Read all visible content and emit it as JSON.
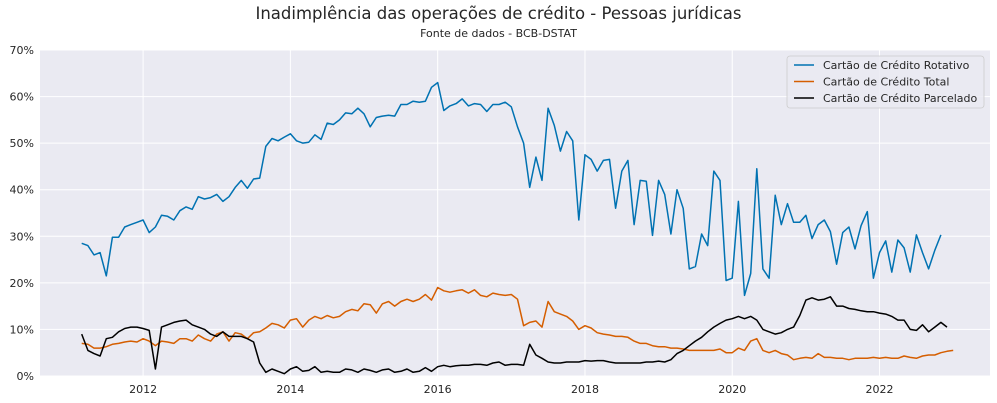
{
  "chart_data": {
    "type": "line",
    "title": "Inadimplência das operações de crédito - Pessoas jurídicas",
    "subtitle": "Fonte de dados - BCB-DSTAT",
    "xlabel": "",
    "ylabel": "",
    "x_start": "2011-03",
    "x_end": "2022-11",
    "xlim": [
      2010.6,
      2023.5
    ],
    "ylim": [
      0,
      70
    ],
    "x_ticks": [
      2012,
      2014,
      2016,
      2018,
      2020,
      2022
    ],
    "x_tick_labels": [
      "2012",
      "2014",
      "2016",
      "2018",
      "2020",
      "2022"
    ],
    "y_ticks": [
      0,
      10,
      20,
      30,
      40,
      50,
      60,
      70
    ],
    "y_tick_labels": [
      "0%",
      "10%",
      "20%",
      "30%",
      "40%",
      "50%",
      "60%",
      "70%"
    ],
    "grid": true,
    "legend_position": "top-right",
    "colors": {
      "background": "#eaeaf2",
      "grid": "#ffffff"
    },
    "series": [
      {
        "name": "Cartão de Crédito Rotativo",
        "color": "#0072b2",
        "values": [
          28.5,
          28.0,
          26.0,
          26.5,
          21.5,
          29.8,
          29.8,
          32.0,
          32.5,
          33.0,
          33.5,
          30.8,
          32.0,
          34.5,
          34.3,
          33.5,
          35.5,
          36.3,
          35.8,
          38.5,
          38.0,
          38.3,
          39.0,
          37.5,
          38.5,
          40.5,
          42.0,
          40.3,
          42.3,
          42.5,
          49.3,
          51.0,
          50.5,
          51.3,
          52.0,
          50.5,
          50.0,
          50.2,
          51.8,
          50.8,
          54.3,
          54.0,
          55.0,
          56.5,
          56.3,
          57.5,
          56.3,
          53.5,
          55.5,
          55.8,
          56.0,
          55.8,
          58.3,
          58.3,
          59.0,
          58.8,
          59.0,
          62.0,
          63.0,
          57.0,
          58.0,
          58.5,
          59.5,
          58.0,
          58.5,
          58.3,
          56.8,
          58.3,
          58.3,
          58.8,
          57.8,
          53.5,
          50.0,
          40.5,
          47.0,
          42.0,
          57.5,
          53.8,
          48.3,
          52.5,
          50.5,
          33.5,
          47.5,
          46.5,
          44.0,
          46.3,
          46.5,
          36.0,
          44.0,
          46.3,
          32.5,
          42.0,
          41.8,
          30.2,
          42.0,
          39.0,
          30.5,
          40.0,
          36.0,
          23.0,
          23.5,
          30.5,
          28.0,
          44.0,
          42.0,
          20.5,
          21.0,
          37.5,
          17.3,
          22.0,
          44.5,
          23.0,
          21.0,
          38.8,
          32.5,
          37.0,
          33.0,
          33.0,
          34.5,
          29.5,
          32.5,
          33.5,
          31.0,
          24.0,
          30.8,
          32.0,
          27.3,
          32.3,
          35.3,
          21.0,
          26.5,
          29.0,
          22.3,
          29.2,
          27.5,
          22.3,
          30.3,
          26.5,
          23.0,
          27.0,
          30.3
        ]
      },
      {
        "name": "Cartão de Crédito Total",
        "color": "#d55e00",
        "values": [
          7.0,
          6.8,
          6.0,
          6.0,
          6.3,
          6.8,
          7.0,
          7.3,
          7.5,
          7.3,
          8.0,
          7.5,
          6.5,
          7.5,
          7.3,
          7.0,
          8.0,
          8.0,
          7.5,
          8.8,
          8.0,
          7.5,
          9.0,
          9.5,
          7.5,
          9.3,
          9.0,
          8.0,
          9.3,
          9.5,
          10.3,
          11.3,
          11.0,
          10.3,
          12.0,
          12.3,
          10.5,
          12.0,
          12.8,
          12.3,
          13.0,
          12.5,
          12.8,
          13.8,
          14.3,
          14.0,
          15.5,
          15.3,
          13.5,
          15.5,
          16.0,
          15.0,
          16.0,
          16.5,
          16.0,
          16.5,
          17.5,
          16.3,
          19.0,
          18.3,
          18.0,
          18.3,
          18.5,
          17.8,
          18.5,
          17.3,
          17.0,
          17.8,
          17.5,
          17.3,
          17.5,
          16.5,
          10.8,
          11.5,
          11.8,
          10.5,
          16.0,
          13.8,
          13.3,
          12.8,
          11.8,
          10.0,
          10.8,
          10.3,
          9.3,
          9.0,
          8.8,
          8.5,
          8.5,
          8.3,
          7.5,
          7.0,
          7.0,
          6.5,
          6.3,
          6.3,
          6.0,
          6.0,
          5.8,
          5.5,
          5.5,
          5.5,
          5.5,
          5.5,
          5.8,
          5.0,
          5.0,
          6.0,
          5.5,
          7.5,
          8.0,
          5.5,
          5.0,
          5.5,
          4.8,
          4.5,
          3.5,
          3.8,
          4.0,
          3.8,
          4.8,
          4.0,
          4.0,
          3.8,
          3.8,
          3.5,
          3.8,
          3.8,
          3.8,
          4.0,
          3.8,
          4.0,
          3.8,
          3.8,
          4.3,
          4.0,
          3.8,
          4.3,
          4.5,
          4.5,
          5.0,
          5.3,
          5.5
        ]
      },
      {
        "name": "Cartão de Crédito Parcelado",
        "color": "#000000",
        "values": [
          9.0,
          5.5,
          4.8,
          4.3,
          8.0,
          8.3,
          9.5,
          10.2,
          10.5,
          10.5,
          10.2,
          9.8,
          1.5,
          10.5,
          11.0,
          11.5,
          11.8,
          12.0,
          11.0,
          10.5,
          10.0,
          9.0,
          8.5,
          9.5,
          8.5,
          8.5,
          8.5,
          8.0,
          7.3,
          2.8,
          0.8,
          1.5,
          1.0,
          0.5,
          1.5,
          2.0,
          1.0,
          1.2,
          2.0,
          0.8,
          1.0,
          0.8,
          0.8,
          1.5,
          1.3,
          0.8,
          1.5,
          1.2,
          0.8,
          1.3,
          1.5,
          0.8,
          1.0,
          1.5,
          0.8,
          1.0,
          1.8,
          1.0,
          2.0,
          2.3,
          2.0,
          2.2,
          2.3,
          2.3,
          2.5,
          2.5,
          2.3,
          2.8,
          3.0,
          2.3,
          2.5,
          2.5,
          2.3,
          6.8,
          4.5,
          3.8,
          3.0,
          2.8,
          2.8,
          3.0,
          3.0,
          3.0,
          3.3,
          3.2,
          3.3,
          3.3,
          3.0,
          2.8,
          2.8,
          2.8,
          2.8,
          2.8,
          3.0,
          3.0,
          3.2,
          3.0,
          3.5,
          4.8,
          5.5,
          6.5,
          7.5,
          8.3,
          9.5,
          10.5,
          11.3,
          12.0,
          12.3,
          12.8,
          12.3,
          12.8,
          12.0,
          10.0,
          9.5,
          9.0,
          9.3,
          10.0,
          10.5,
          13.0,
          16.3,
          16.8,
          16.3,
          16.5,
          17.0,
          15.0,
          15.0,
          14.5,
          14.3,
          14.0,
          13.8,
          13.8,
          13.5,
          13.3,
          12.8,
          12.0,
          12.0,
          10.0,
          9.8,
          11.0,
          9.5,
          10.5,
          11.5,
          10.5
        ]
      }
    ]
  }
}
